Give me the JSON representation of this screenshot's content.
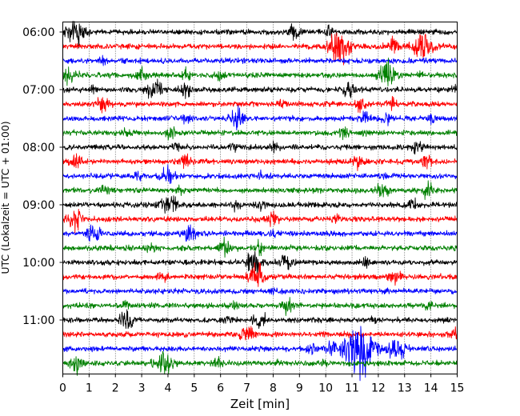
{
  "chart_data": {
    "type": "line",
    "title": "",
    "xlabel": "Zeit  [min]",
    "ylabel": "UTC (Lokalzeit = UTC + 01:00)",
    "xlim": [
      0,
      15
    ],
    "x_ticks": [
      0,
      1,
      2,
      3,
      4,
      5,
      6,
      7,
      8,
      9,
      10,
      11,
      12,
      13,
      14,
      15
    ],
    "y_ticks": [
      "06:00",
      "07:00",
      "08:00",
      "09:00",
      "10:00",
      "11:00"
    ],
    "grid": "vertical dotted at each minute",
    "trace_start": "06:00",
    "trace_interval_min": 15,
    "trace_colors": [
      "#000000",
      "#ff0000",
      "#0000ff",
      "#008000"
    ],
    "series": [
      {
        "start": "06:00",
        "color": "#000000",
        "events": [
          [
            0.5,
            1.6
          ],
          [
            8.8,
            0.9
          ],
          [
            10.1,
            0.5
          ]
        ]
      },
      {
        "start": "06:15",
        "color": "#ff0000",
        "events": [
          [
            10.5,
            1.8
          ],
          [
            12.6,
            1.1
          ],
          [
            13.7,
            1.6
          ]
        ]
      },
      {
        "start": "06:30",
        "color": "#0000ff",
        "events": [
          [
            1.5,
            0.3
          ],
          [
            13.8,
            0.3
          ]
        ]
      },
      {
        "start": "06:45",
        "color": "#008000",
        "events": [
          [
            0.2,
            1.2
          ],
          [
            3.0,
            0.6
          ],
          [
            4.7,
            0.5
          ],
          [
            6.0,
            0.4
          ],
          [
            12.4,
            1.6
          ],
          [
            13.6,
            0.3
          ]
        ]
      },
      {
        "start": "07:00",
        "color": "#000000",
        "events": [
          [
            1.2,
            0.4
          ],
          [
            3.5,
            1.2
          ],
          [
            4.7,
            0.8
          ],
          [
            10.9,
            0.9
          ],
          [
            14.9,
            0.5
          ]
        ]
      },
      {
        "start": "07:15",
        "color": "#ff0000",
        "events": [
          [
            1.5,
            0.9
          ],
          [
            8.3,
            0.4
          ],
          [
            11.3,
            0.7
          ],
          [
            12.5,
            0.6
          ]
        ]
      },
      {
        "start": "07:30",
        "color": "#0000ff",
        "events": [
          [
            4.7,
            0.5
          ],
          [
            6.6,
            1.1
          ],
          [
            11.5,
            0.7
          ],
          [
            12.3,
            0.6
          ],
          [
            14.0,
            0.4
          ]
        ]
      },
      {
        "start": "07:45",
        "color": "#008000",
        "events": [
          [
            2.4,
            0.5
          ],
          [
            4.1,
            0.7
          ],
          [
            10.7,
            0.6
          ],
          [
            11.5,
            0.3
          ]
        ]
      },
      {
        "start": "08:00",
        "color": "#000000",
        "events": [
          [
            4.3,
            0.5
          ],
          [
            6.5,
            0.5
          ],
          [
            8.1,
            0.5
          ],
          [
            13.5,
            0.8
          ]
        ]
      },
      {
        "start": "08:15",
        "color": "#ff0000",
        "events": [
          [
            0.5,
            0.8
          ],
          [
            4.7,
            0.8
          ],
          [
            11.2,
            0.8
          ],
          [
            13.8,
            0.7
          ]
        ]
      },
      {
        "start": "08:30",
        "color": "#0000ff",
        "events": [
          [
            2.8,
            0.5
          ],
          [
            4.0,
            1.1
          ],
          [
            7.5,
            0.3
          ],
          [
            12.2,
            0.3
          ]
        ]
      },
      {
        "start": "08:45",
        "color": "#008000",
        "events": [
          [
            1.6,
            0.5
          ],
          [
            4.5,
            0.4
          ],
          [
            12.2,
            0.9
          ],
          [
            13.9,
            0.8
          ]
        ]
      },
      {
        "start": "09:00",
        "color": "#000000",
        "events": [
          [
            4.0,
            1.3
          ],
          [
            6.6,
            0.5
          ],
          [
            7.5,
            0.5
          ],
          [
            13.3,
            0.7
          ]
        ]
      },
      {
        "start": "09:15",
        "color": "#ff0000",
        "events": [
          [
            0.5,
            1.1
          ],
          [
            8.0,
            0.8
          ],
          [
            10.4,
            0.5
          ]
        ]
      },
      {
        "start": "09:30",
        "color": "#0000ff",
        "events": [
          [
            1.2,
            1.0
          ],
          [
            4.8,
            0.9
          ],
          [
            8.0,
            0.4
          ]
        ]
      },
      {
        "start": "09:45",
        "color": "#008000",
        "events": [
          [
            3.4,
            0.5
          ],
          [
            6.2,
            0.9
          ],
          [
            7.5,
            0.6
          ]
        ]
      },
      {
        "start": "10:00",
        "color": "#000000",
        "events": [
          [
            7.3,
            1.3
          ],
          [
            8.5,
            1.0
          ],
          [
            11.5,
            0.4
          ]
        ]
      },
      {
        "start": "10:15",
        "color": "#ff0000",
        "events": [
          [
            3.8,
            0.6
          ],
          [
            7.4,
            1.4
          ],
          [
            12.6,
            0.9
          ]
        ]
      },
      {
        "start": "10:30",
        "color": "#0000ff",
        "events": [
          [
            8.0,
            0.3
          ]
        ]
      },
      {
        "start": "10:45",
        "color": "#008000",
        "events": [
          [
            2.4,
            0.5
          ],
          [
            6.5,
            0.6
          ],
          [
            8.6,
            1.0
          ],
          [
            13.9,
            0.4
          ]
        ]
      },
      {
        "start": "11:00",
        "color": "#000000",
        "events": [
          [
            2.4,
            1.1
          ],
          [
            6.3,
            0.5
          ],
          [
            7.5,
            0.9
          ],
          [
            11.8,
            0.3
          ]
        ]
      },
      {
        "start": "11:15",
        "color": "#ff0000",
        "events": [
          [
            7.0,
            1.0
          ],
          [
            10.8,
            0.4
          ],
          [
            14.9,
            0.8
          ]
        ]
      },
      {
        "start": "11:30",
        "color": "#0000ff",
        "events": [
          [
            11.1,
            2.2
          ],
          [
            11.5,
            2.0
          ],
          [
            12.7,
            1.5
          ],
          [
            10.2,
            0.7
          ],
          [
            9.5,
            0.6
          ]
        ]
      },
      {
        "start": "11:45",
        "color": "#008000",
        "events": [
          [
            0.5,
            1.0
          ],
          [
            3.8,
            1.4
          ],
          [
            5.9,
            0.7
          ],
          [
            8.2,
            0.3
          ],
          [
            9.9,
            0.3
          ]
        ]
      }
    ]
  }
}
